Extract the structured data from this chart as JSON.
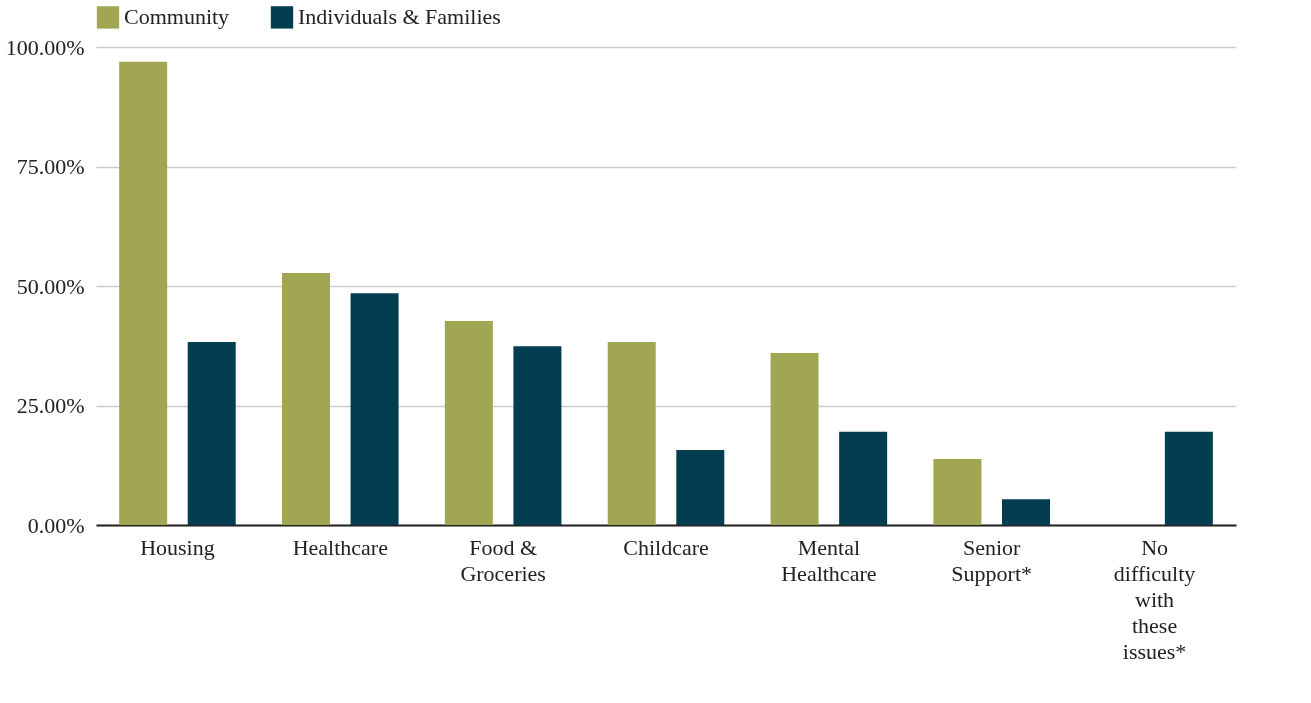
{
  "chart_data": {
    "type": "bar",
    "categories": [
      "Housing",
      "Healthcare",
      "Food & Groceries",
      "Childcare",
      "Mental Healthcare",
      "Senior Support*",
      "No difficulty with these issues*"
    ],
    "series": [
      {
        "name": "Community",
        "color": "#a0a651",
        "values": [
          96.9,
          52.7,
          42.7,
          38.3,
          36.0,
          13.8,
          null
        ]
      },
      {
        "name": "Individuals & Families",
        "color": "#023e50",
        "values": [
          38.3,
          48.5,
          37.4,
          15.7,
          19.5,
          5.4,
          19.5
        ]
      }
    ],
    "ylim": [
      0,
      100
    ],
    "yticks": [
      {
        "value": 0,
        "label": "0.00%"
      },
      {
        "value": 25,
        "label": "25.00%"
      },
      {
        "value": 50,
        "label": "50.00%"
      },
      {
        "value": 75,
        "label": "75.00%"
      },
      {
        "value": 100,
        "label": "100.00%"
      }
    ],
    "grid": "y",
    "legend": "top"
  }
}
